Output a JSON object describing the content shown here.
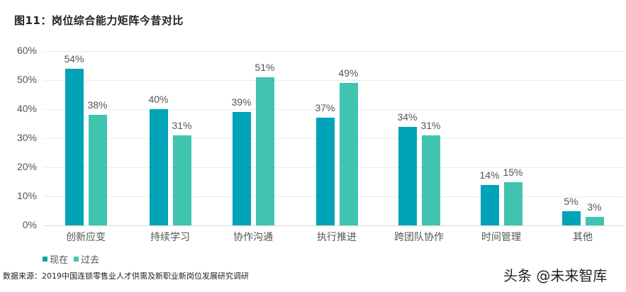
{
  "title": "图11：岗位综合能力矩阵今昔对比",
  "colors": {
    "series_now": "#00A3B8",
    "series_past": "#40C4B0"
  },
  "y_ticks": [
    "60%",
    "50%",
    "40%",
    "30%",
    "20%",
    "10%",
    "0%"
  ],
  "legend": {
    "now": "现在",
    "past": "过去"
  },
  "source": "数据来源：2019中国连锁零售业人才供需及新职业新岗位发展研究调研",
  "watermark": "头条 @未来智库",
  "labels": {
    "now": [
      "54%",
      "40%",
      "39%",
      "37%",
      "34%",
      "14%",
      "5%"
    ],
    "past": [
      "38%",
      "31%",
      "51%",
      "49%",
      "31%",
      "15%",
      "3%"
    ]
  },
  "chart_data": {
    "type": "bar",
    "title": "图11：岗位综合能力矩阵今昔对比",
    "categories": [
      "创新应变",
      "持续学习",
      "协作沟通",
      "执行推进",
      "跨团队协作",
      "时间管理",
      "其他"
    ],
    "series": [
      {
        "name": "现在",
        "values": [
          54,
          40,
          39,
          37,
          34,
          14,
          5
        ],
        "color": "#00A3B8"
      },
      {
        "name": "过去",
        "values": [
          38,
          31,
          51,
          49,
          31,
          15,
          3
        ],
        "color": "#40C4B0"
      }
    ],
    "xlabel": "",
    "ylabel": "",
    "ylim": [
      0,
      60
    ],
    "yticks": [
      0,
      10,
      20,
      30,
      40,
      50,
      60
    ],
    "y_format": "percent",
    "grid": true,
    "legend_position": "bottom-left",
    "data_labels": true
  }
}
